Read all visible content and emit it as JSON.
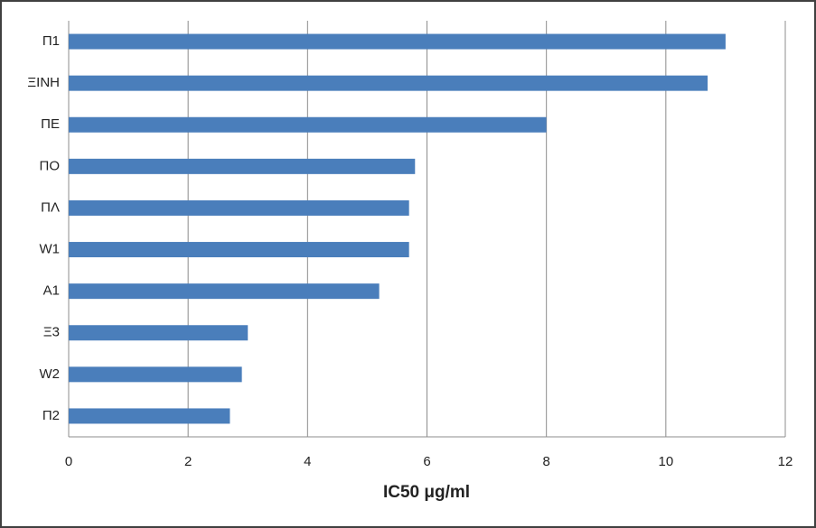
{
  "chart_data": {
    "type": "bar",
    "orientation": "horizontal",
    "x_label": "IC50 μg/ml",
    "categories": [
      "Π1",
      "ΞΙΝΗ",
      "ΠΕ",
      "ΠΟ",
      "ΠΛ",
      "W1",
      "A1",
      "Ξ3",
      "W2",
      "Π2"
    ],
    "values": [
      11,
      10.7,
      8,
      5.8,
      5.7,
      5.7,
      5.2,
      3,
      2.9,
      2.7
    ],
    "color": "#4a7ebb",
    "xlim": [
      0,
      12
    ],
    "xticks": [
      0,
      2,
      4,
      6,
      8,
      10,
      12
    ],
    "grid": true
  }
}
